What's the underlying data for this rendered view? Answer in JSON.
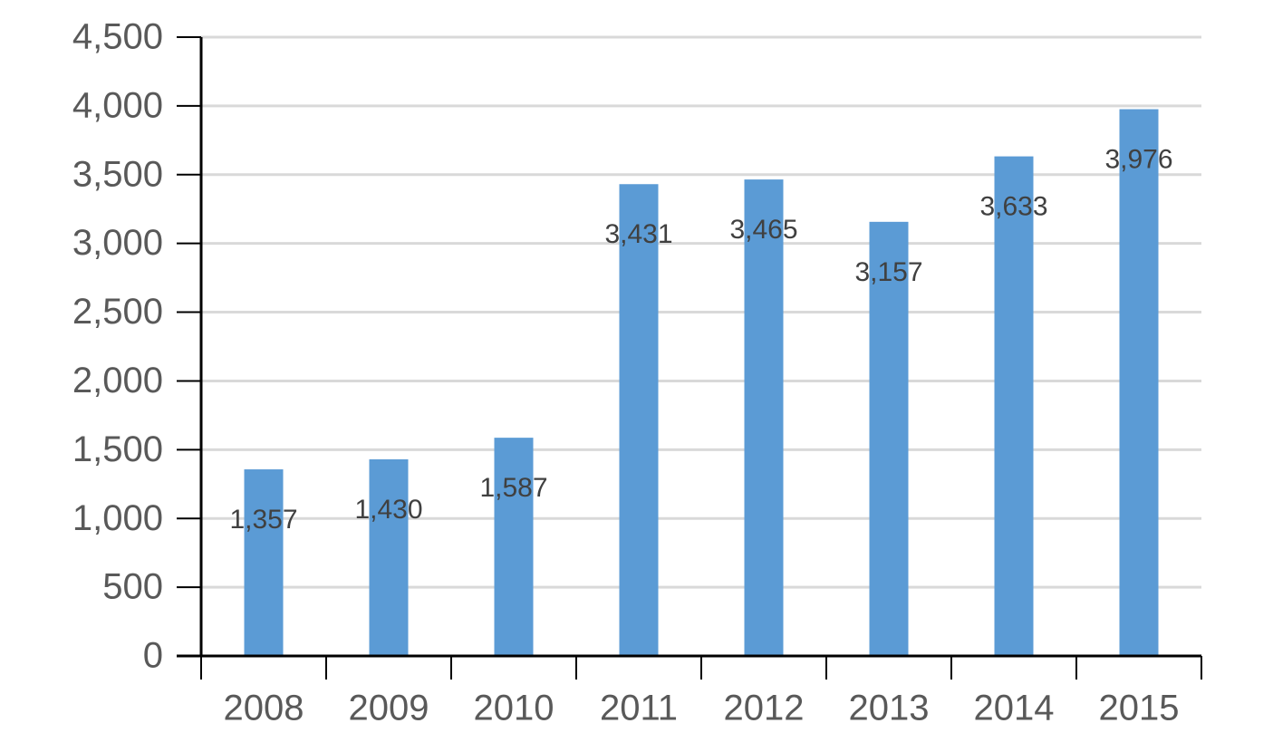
{
  "chart_data": {
    "type": "bar",
    "categories": [
      "2008",
      "2009",
      "2010",
      "2011",
      "2012",
      "2013",
      "2014",
      "2015"
    ],
    "values": [
      1357,
      1430,
      1587,
      3431,
      3465,
      3157,
      3633,
      3976
    ],
    "value_labels": [
      "1,357",
      "1,430",
      "1,587",
      "3,431",
      "3,465",
      "3,157",
      "3,633",
      "3,976"
    ],
    "color": "#5b9bd5",
    "ylim": [
      0,
      4500
    ],
    "yticks": [
      0,
      500,
      {
        "value": 1000,
        "label": "1,000"
      },
      {
        "value": 1500,
        "label": "1,500"
      },
      {
        "value": 2000,
        "label": "2,000"
      },
      {
        "value": 2500,
        "label": "2,500"
      },
      {
        "value": 3000,
        "label": "3,000"
      },
      {
        "value": 3500,
        "label": "3,500"
      },
      {
        "value": 4000,
        "label": "4,000"
      },
      {
        "value": 4500,
        "label": "4,500"
      }
    ],
    "grid": true
  }
}
